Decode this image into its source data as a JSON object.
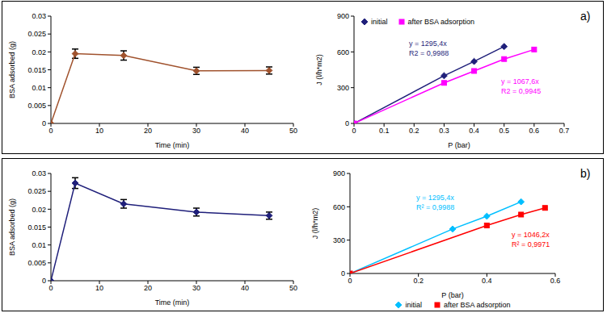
{
  "panel_labels": [
    "a)",
    "b)"
  ],
  "chart_data": [
    {
      "type": "line",
      "x_label": "Time (min)",
      "y_label": "BSA adsorbed (g)",
      "x": [
        0,
        5,
        15,
        30,
        45
      ],
      "values": [
        0,
        0.0195,
        0.019,
        0.0147,
        0.0148
      ],
      "errors": [
        0,
        0.0013,
        0.0013,
        0.001,
        0.001
      ],
      "color": "#A0522D",
      "marker": "diamond",
      "xlim": [
        0,
        50
      ],
      "xticks": [
        0,
        10,
        20,
        30,
        40,
        50
      ],
      "ylim": [
        0,
        0.03
      ],
      "yticks": [
        0,
        0.005,
        0.01,
        0.015,
        0.02,
        0.025,
        0.03
      ],
      "grid": false
    },
    {
      "type": "line",
      "x_label": "P (bar)",
      "y_label": "J (l/h*m2)",
      "legend": "top left",
      "xlim": [
        0,
        0.7
      ],
      "xticks": [
        0,
        0.1,
        0.2,
        0.3,
        0.4,
        0.5,
        0.6,
        0.7
      ],
      "ylim": [
        0,
        900
      ],
      "yticks": [
        0,
        300,
        600,
        900
      ],
      "grid": false,
      "series": [
        {
          "name": "initial",
          "color": "#1F1F7A",
          "marker": "diamond",
          "x": [
            0,
            0.3,
            0.4,
            0.5
          ],
          "values": [
            0,
            400,
            520,
            645
          ],
          "equation": "y = 1295,4x",
          "r2": "R2 = 0,9988"
        },
        {
          "name": "after BSA adsorption",
          "color": "#FF00FF",
          "marker": "square",
          "x": [
            0,
            0.3,
            0.4,
            0.5,
            0.6
          ],
          "values": [
            0,
            340,
            440,
            540,
            620
          ],
          "equation": "y = 1067,6x",
          "r2": "R2 = 0,9945"
        }
      ]
    },
    {
      "type": "line",
      "x_label": "Time (min)",
      "y_label": "BSA adsorbed (g)",
      "x": [
        0,
        5,
        15,
        30,
        45
      ],
      "values": [
        0,
        0.0273,
        0.0215,
        0.0192,
        0.0182
      ],
      "errors": [
        0,
        0.0015,
        0.0012,
        0.0011,
        0.001
      ],
      "color": "#1F1F7A",
      "marker": "diamond",
      "xlim": [
        0,
        50
      ],
      "xticks": [
        0,
        10,
        20,
        30,
        40,
        50
      ],
      "ylim": [
        0,
        0.03
      ],
      "yticks": [
        0,
        0.005,
        0.01,
        0.015,
        0.02,
        0.025,
        0.03
      ],
      "grid": false
    },
    {
      "type": "line",
      "x_label": "P (bar)",
      "y_label": "J (l/h*m2)",
      "legend": "bottom",
      "xlim": [
        0,
        0.6
      ],
      "xticks": [
        0,
        0.2,
        0.4,
        0.6
      ],
      "ylim": [
        0,
        900
      ],
      "yticks": [
        0,
        300,
        600,
        900
      ],
      "grid": false,
      "series": [
        {
          "name": "initial",
          "color": "#00BFFF",
          "marker": "diamond",
          "x": [
            0,
            0.3,
            0.4,
            0.5
          ],
          "values": [
            0,
            400,
            515,
            645
          ],
          "equation": "y = 1295,4x",
          "r2": "R² = 0,9988"
        },
        {
          "name": "after BSA adsorption",
          "color": "#FF0000",
          "marker": "square",
          "x": [
            0,
            0.4,
            0.5,
            0.57
          ],
          "values": [
            0,
            432,
            530,
            590
          ],
          "equation": "y = 1046,2x",
          "r2": "R² = 0,9971"
        }
      ]
    }
  ]
}
